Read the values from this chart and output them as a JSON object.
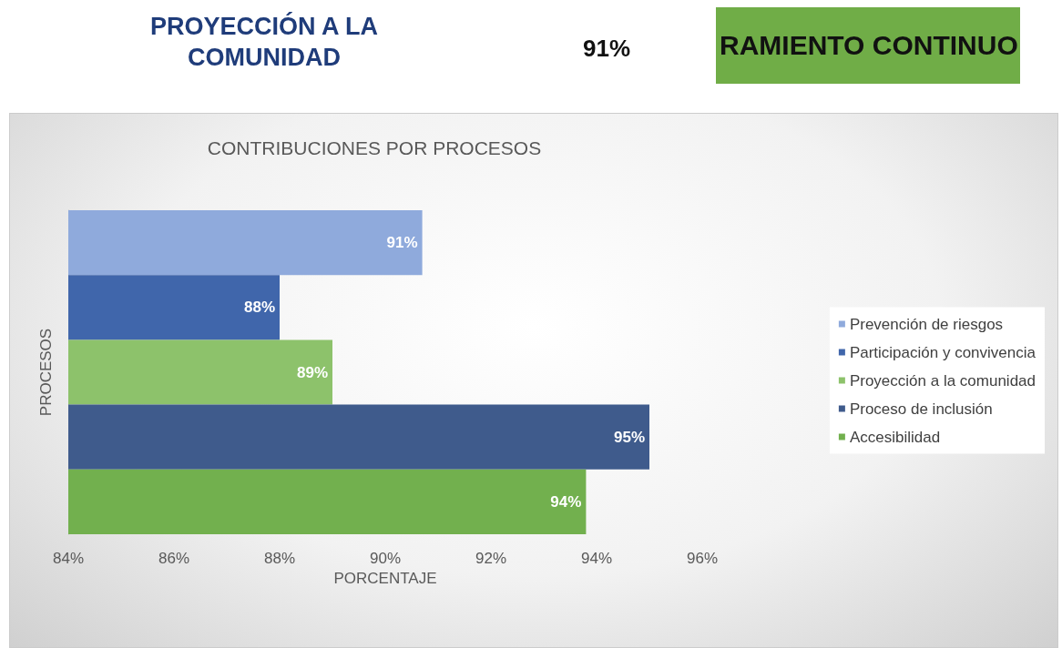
{
  "chart_data": {
    "type": "bar",
    "orientation": "horizontal",
    "title": "CONTRIBUCIONES POR PROCESOS",
    "xlabel": "PORCENTAJE",
    "ylabel": "PROCESOS",
    "annotations": [
      "PROYECCIÓN A LA COMUNIDAD",
      "91%",
      "RAMIENTO CONTINUO"
    ],
    "categories": [
      null,
      null,
      null,
      null,
      null
    ],
    "series": [
      {
        "name": "Prevención de riesgos",
        "color": "#8faadc",
        "values": [
          90.7,
          null,
          null,
          null,
          null
        ],
        "value_labels": [
          "91%",
          null,
          null,
          null,
          null
        ]
      },
      {
        "name": "Participación y convivencia",
        "color": "#4066ab",
        "values": [
          null,
          88,
          null,
          null,
          null
        ],
        "value_labels": [
          null,
          "88%",
          null,
          null,
          null
        ]
      },
      {
        "name": "Proyección a la comunidad",
        "color": "#8dc26b",
        "values": [
          null,
          null,
          89,
          null,
          null
        ],
        "value_labels": [
          null,
          null,
          "89%",
          null,
          null
        ]
      },
      {
        "name": "Proceso de inclusión",
        "color": "#3f5b8c",
        "values": [
          null,
          null,
          null,
          95,
          null
        ],
        "value_labels": [
          null,
          null,
          null,
          "95%",
          null
        ]
      },
      {
        "name": "Accesibilidad",
        "color": "#72b04e",
        "values": [
          null,
          null,
          null,
          null,
          93.8
        ],
        "value_labels": [
          null,
          null,
          null,
          null,
          "94%"
        ]
      }
    ],
    "xlim": [
      84,
      96
    ],
    "xticks": [
      {
        "value": 84,
        "label": "84%"
      },
      {
        "value": 86,
        "label": "86%"
      },
      {
        "value": 88,
        "label": "88%"
      },
      {
        "value": 90,
        "label": "90%"
      },
      {
        "value": 92,
        "label": "92%"
      },
      {
        "value": 94,
        "label": "94%"
      },
      {
        "value": 96,
        "label": "96%"
      }
    ],
    "tick_labels": "x",
    "grid": false,
    "legend": "right"
  }
}
